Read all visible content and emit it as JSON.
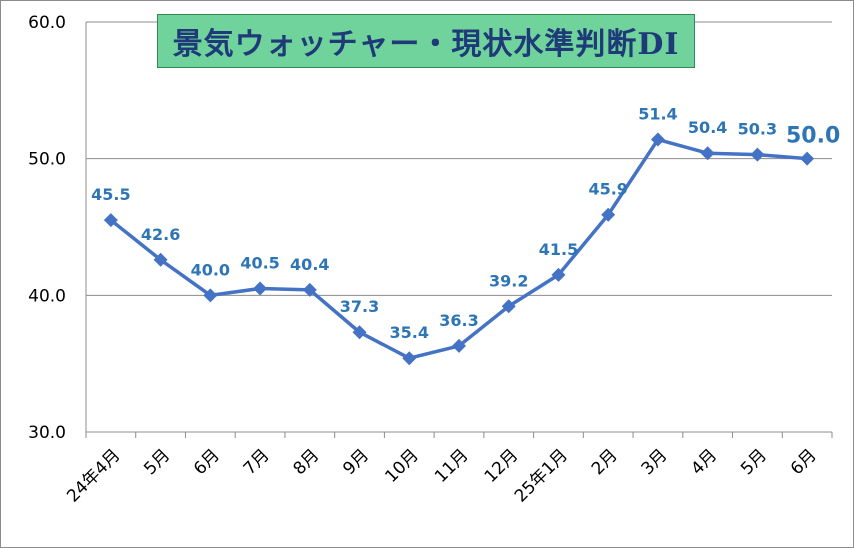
{
  "chart_data": {
    "type": "line",
    "title": "景気ウォッチャー・現状水準判断DI",
    "categories": [
      "24年4月",
      "5月",
      "6月",
      "7月",
      "8月",
      "9月",
      "10月",
      "11月",
      "12月",
      "25年1月",
      "2月",
      "3月",
      "4月",
      "5月",
      "6月"
    ],
    "values": [
      45.5,
      42.6,
      40.0,
      40.5,
      40.4,
      37.3,
      35.4,
      36.3,
      39.2,
      41.5,
      45.9,
      51.4,
      50.4,
      50.3,
      50.0
    ],
    "value_labels": [
      "45.5",
      "42.6",
      "40.0",
      "40.5",
      "40.4",
      "37.3",
      "35.4",
      "36.3",
      "39.2",
      "41.5",
      "45.9",
      "51.4",
      "50.4",
      "50.3",
      "50.0"
    ],
    "ylim": [
      30,
      60
    ],
    "yticks": [
      "30.0",
      "40.0",
      "50.0",
      "60.0"
    ],
    "xlabel": "",
    "ylabel": "",
    "grid": true,
    "series_color": "#4472c4",
    "label_color": "#2e75b6",
    "title_bg": "#70d39b",
    "title_color": "#1f3a78"
  }
}
